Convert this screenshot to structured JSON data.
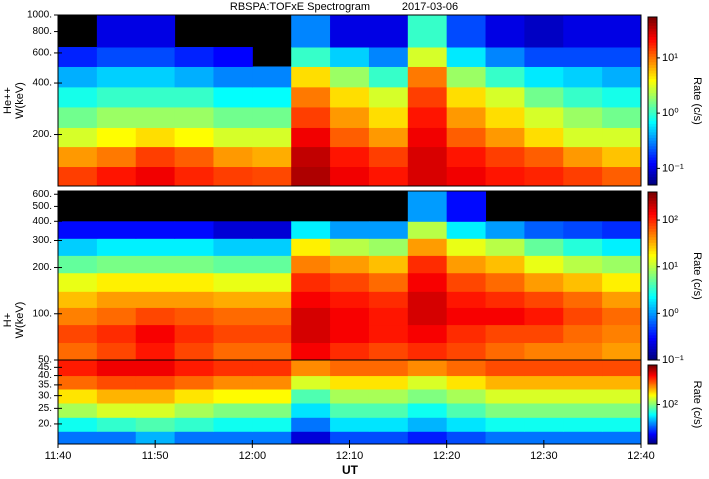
{
  "chart_data": {
    "type": "heatmap",
    "title": "RBSPA:TOFxE Spectrogram",
    "date": "2017-03-06",
    "xlabel": "UT",
    "x": [
      "11:40",
      "11:44",
      "11:48",
      "11:52",
      "11:56",
      "12:00",
      "12:04",
      "12:08",
      "12:12",
      "12:16",
      "12:20",
      "12:24",
      "12:28",
      "12:32",
      "12:36"
    ],
    "xlim": [
      "11:40",
      "12:40"
    ],
    "xticks": [
      "11:40",
      "11:50",
      "12:00",
      "12:10",
      "12:20",
      "12:30",
      "12:40"
    ],
    "log_y": true,
    "log_color": true,
    "colormap": "jet",
    "missing_color": "#000000",
    "panels": [
      {
        "ylabel": "He++",
        "yunit": "W(keV)",
        "clabel": "Rate (c/s)",
        "ylim": [
          100,
          1000
        ],
        "yticks": [
          {
            "value": 200,
            "label": "200."
          },
          {
            "value": 400,
            "label": "400."
          },
          {
            "value": 600,
            "label": "600."
          },
          {
            "value": 800,
            "label": "800."
          },
          {
            "value": 1000,
            "label": "1000."
          }
        ],
        "y_bins": [
          100,
          130,
          170,
          220,
          290,
          380,
          500,
          650,
          1000
        ],
        "clim": [
          0.05,
          55
        ],
        "cticks": [
          {
            "value": 0.1,
            "label": "10⁻¹"
          },
          {
            "value": 1,
            "label": "10⁰"
          },
          {
            "value": 10,
            "label": "10¹"
          }
        ],
        "values": [
          [
            15,
            20,
            25,
            18,
            15,
            14,
            40,
            25,
            20,
            30,
            25,
            20,
            18,
            15,
            12
          ],
          [
            8,
            10,
            15,
            12,
            8,
            7,
            35,
            20,
            15,
            30,
            20,
            15,
            12,
            8,
            6
          ],
          [
            3,
            4,
            5,
            4,
            3,
            3,
            25,
            12,
            8,
            25,
            12,
            8,
            5,
            3,
            3
          ],
          [
            1.5,
            2,
            2,
            2,
            1.5,
            1.5,
            15,
            8,
            5,
            20,
            8,
            5,
            3,
            2,
            1.5
          ],
          [
            0.8,
            1,
            1,
            1,
            0.7,
            0.7,
            10,
            5,
            3,
            15,
            5,
            3,
            1.5,
            1,
            0.8
          ],
          [
            0.4,
            0.5,
            0.5,
            0.4,
            0.3,
            0.3,
            5,
            2,
            1,
            10,
            2,
            1,
            0.6,
            0.5,
            0.4
          ],
          [
            0.15,
            0.2,
            0.2,
            0.15,
            0.12,
            null,
            1,
            0.5,
            0.3,
            3,
            0.6,
            0.3,
            0.2,
            0.2,
            0.2
          ],
          [
            null,
            0.1,
            0.1,
            null,
            null,
            null,
            0.3,
            0.1,
            0.1,
            1,
            0.2,
            0.1,
            0.08,
            0.1,
            0.1
          ]
        ]
      },
      {
        "ylabel": "H+",
        "yunit": "W(keV)",
        "clabel": "Rate (c/s)",
        "ylim": [
          50,
          630
        ],
        "yticks": [
          {
            "value": 50,
            "label": "50."
          },
          {
            "value": 100,
            "label": "100."
          },
          {
            "value": 200,
            "label": "200."
          },
          {
            "value": 300,
            "label": "300."
          },
          {
            "value": 400,
            "label": "400."
          },
          {
            "value": 500,
            "label": "500."
          },
          {
            "value": 600,
            "label": "600."
          }
        ],
        "y_bins": [
          50,
          65,
          85,
          110,
          140,
          185,
          240,
          310,
          400,
          630
        ],
        "clim": [
          0.1,
          400
        ],
        "cticks": [
          {
            "value": 0.1,
            "label": "10⁻¹"
          },
          {
            "value": 1,
            "label": "10⁰"
          },
          {
            "value": 10,
            "label": "10¹"
          },
          {
            "value": 100,
            "label": "10²"
          }
        ],
        "values": [
          [
            60,
            80,
            120,
            80,
            60,
            60,
            150,
            100,
            80,
            100,
            80,
            60,
            50,
            50,
            40
          ],
          [
            80,
            100,
            150,
            100,
            80,
            80,
            200,
            150,
            120,
            150,
            100,
            80,
            80,
            60,
            50
          ],
          [
            50,
            60,
            80,
            70,
            60,
            60,
            200,
            150,
            120,
            200,
            150,
            150,
            120,
            80,
            60
          ],
          [
            30,
            40,
            40,
            40,
            35,
            35,
            150,
            120,
            100,
            200,
            120,
            100,
            80,
            60,
            40
          ],
          [
            15,
            20,
            20,
            20,
            15,
            15,
            100,
            80,
            60,
            150,
            80,
            60,
            40,
            30,
            20
          ],
          [
            5,
            6,
            6,
            6,
            5,
            5,
            50,
            40,
            30,
            100,
            40,
            30,
            15,
            10,
            8
          ],
          [
            1.5,
            2,
            2,
            2,
            1.5,
            1.5,
            20,
            10,
            8,
            40,
            15,
            10,
            5,
            3,
            2
          ],
          [
            0.3,
            0.3,
            0.3,
            0.3,
            0.2,
            0.2,
            2,
            1,
            1,
            10,
            2,
            1,
            0.6,
            0.5,
            0.4
          ],
          [
            null,
            null,
            null,
            null,
            null,
            null,
            null,
            null,
            null,
            1,
            0.3,
            null,
            null,
            null,
            null
          ]
        ]
      },
      {
        "clabel": "Rate (c/s)",
        "ylim": [
          15,
          50
        ],
        "yticks": [
          {
            "value": 20,
            "label": "20."
          },
          {
            "value": 25,
            "label": "25."
          },
          {
            "value": 30,
            "label": "30."
          },
          {
            "value": 35,
            "label": "35."
          },
          {
            "value": 40,
            "label": "40."
          },
          {
            "value": 45,
            "label": "45."
          }
        ],
        "y_bins": [
          15,
          18,
          22,
          27,
          33,
          40,
          50
        ],
        "clim": [
          10,
          1000
        ],
        "cticks": [
          {
            "value": 100,
            "label": "10²"
          }
        ],
        "values": [
          [
            30,
            30,
            40,
            30,
            30,
            30,
            15,
            25,
            25,
            20,
            25,
            30,
            30,
            30,
            30
          ],
          [
            60,
            70,
            80,
            70,
            60,
            60,
            30,
            50,
            50,
            40,
            50,
            60,
            60,
            60,
            60
          ],
          [
            120,
            150,
            150,
            120,
            100,
            100,
            50,
            80,
            80,
            60,
            80,
            100,
            100,
            100,
            100
          ],
          [
            200,
            250,
            250,
            200,
            180,
            180,
            80,
            120,
            120,
            100,
            120,
            150,
            150,
            150,
            150
          ],
          [
            350,
            400,
            400,
            350,
            300,
            300,
            150,
            200,
            200,
            150,
            200,
            250,
            250,
            250,
            250
          ],
          [
            500,
            600,
            600,
            500,
            450,
            450,
            300,
            350,
            350,
            300,
            350,
            400,
            400,
            400,
            400
          ]
        ]
      }
    ]
  }
}
